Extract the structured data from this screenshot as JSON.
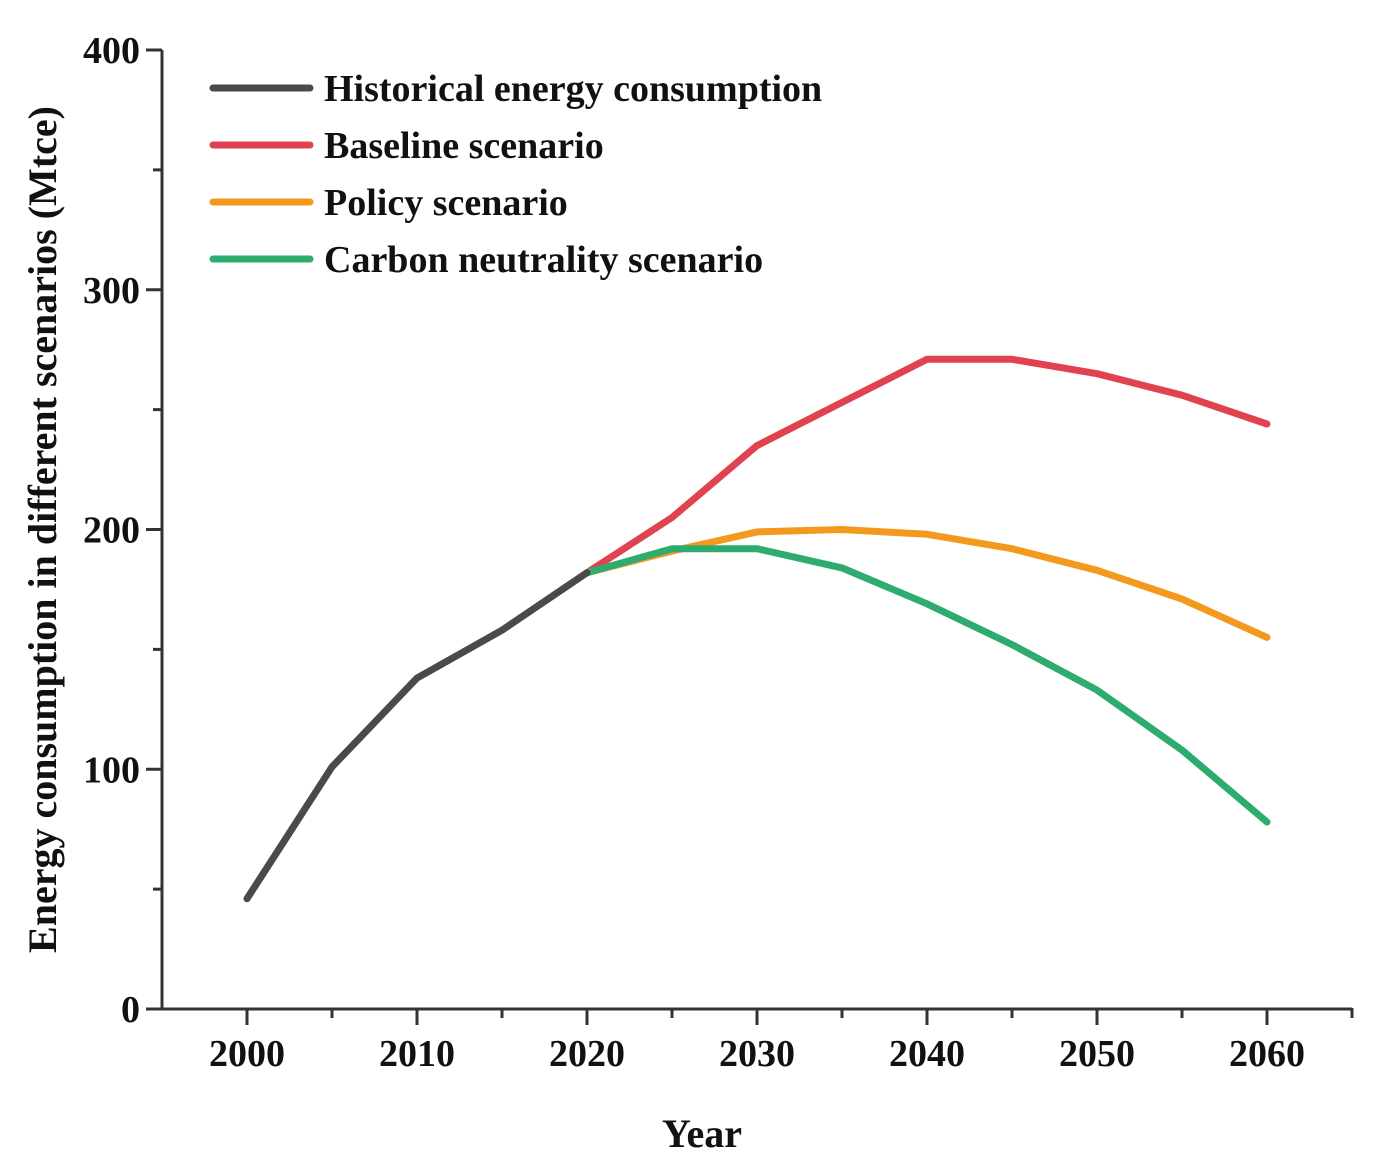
{
  "chart_data": {
    "type": "line",
    "title": "",
    "xlabel": "Year",
    "ylabel": "Energy consumption in different scenarios (Mtce)",
    "xlim": [
      1995,
      2065
    ],
    "ylim": [
      0,
      400
    ],
    "x_ticks": [
      2000,
      2010,
      2020,
      2030,
      2040,
      2050,
      2060
    ],
    "x_minor_ticks": [
      2005,
      2015,
      2025,
      2035,
      2045,
      2055
    ],
    "y_ticks": [
      0,
      100,
      200,
      300,
      400
    ],
    "y_minor_ticks": [
      50,
      150,
      250,
      350
    ],
    "grid": false,
    "legend_position": "top-left",
    "series": [
      {
        "name": "Historical energy consumption",
        "color": "#4a4a4a",
        "x": [
          2000,
          2005,
          2010,
          2015,
          2020
        ],
        "y": [
          46,
          101,
          138,
          158,
          182
        ]
      },
      {
        "name": "Baseline scenario",
        "color": "#e0434f",
        "x": [
          2020,
          2025,
          2030,
          2035,
          2040,
          2045,
          2050,
          2055,
          2060
        ],
        "y": [
          182,
          205,
          235,
          253,
          271,
          271,
          265,
          256,
          244
        ]
      },
      {
        "name": "Policy scenario",
        "color": "#f39a1e",
        "x": [
          2020,
          2025,
          2030,
          2035,
          2040,
          2045,
          2050,
          2055,
          2060
        ],
        "y": [
          182,
          191,
          199,
          200,
          198,
          192,
          183,
          171,
          155
        ]
      },
      {
        "name": "Carbon neutrality scenario",
        "color": "#2eab6f",
        "x": [
          2020,
          2025,
          2030,
          2035,
          2040,
          2045,
          2050,
          2055,
          2060
        ],
        "y": [
          182,
          192,
          192,
          184,
          169,
          152,
          133,
          108,
          78
        ]
      }
    ]
  }
}
